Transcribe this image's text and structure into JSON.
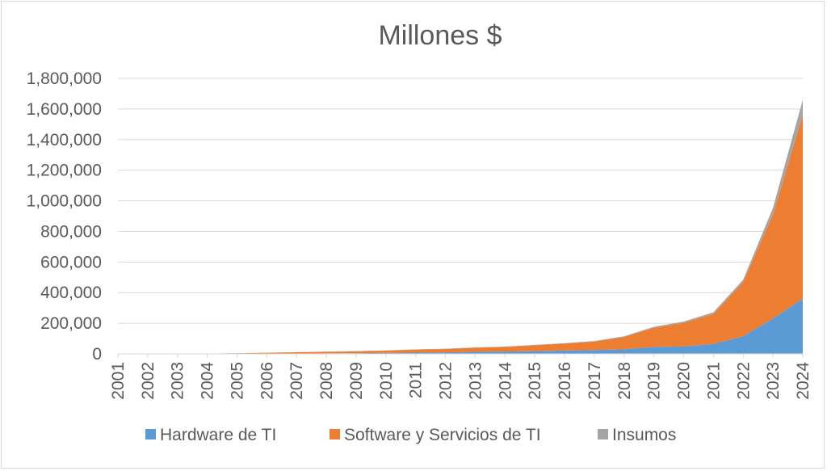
{
  "chart_data": {
    "type": "area",
    "stacked": true,
    "title": "Millones $",
    "xlabel": "",
    "ylabel": "",
    "ylim": [
      0,
      1800000
    ],
    "yticks": [
      "0",
      "200,000",
      "400,000",
      "600,000",
      "800,000",
      "1,000,000",
      "1,200,000",
      "1,400,000",
      "1,600,000",
      "1,800,000"
    ],
    "ytick_values": [
      0,
      200000,
      400000,
      600000,
      800000,
      1000000,
      1200000,
      1400000,
      1600000,
      1800000
    ],
    "categories": [
      "2001",
      "2002",
      "2003",
      "2004",
      "2005",
      "2006",
      "2007",
      "2008",
      "2009",
      "2010",
      "2011",
      "2012",
      "2013",
      "2014",
      "2015",
      "2016",
      "2017",
      "2018",
      "2019",
      "2020",
      "2021",
      "2022",
      "2023",
      "2024"
    ],
    "grid": true,
    "legend_position": "bottom",
    "series": [
      {
        "name": "Hardware de TI",
        "color": "#5B9BD5",
        "values": [
          50,
          80,
          150,
          300,
          800,
          1500,
          2500,
          3500,
          4500,
          6000,
          8000,
          10000,
          13000,
          15000,
          18000,
          22000,
          25000,
          30000,
          45000,
          48000,
          65000,
          115000,
          230000,
          360000
        ]
      },
      {
        "name": "Software y Servicios de TI",
        "color": "#ED7D31",
        "values": [
          300,
          500,
          900,
          1800,
          3500,
          5500,
          8000,
          10000,
          12000,
          15000,
          20000,
          22000,
          27000,
          30000,
          38000,
          45000,
          55000,
          80000,
          125000,
          155000,
          195000,
          355000,
          680000,
          1200000
        ]
      },
      {
        "name": "Insumos",
        "color": "#A5A5A5",
        "values": [
          20,
          40,
          80,
          150,
          300,
          500,
          700,
          900,
          1100,
          1300,
          1500,
          1800,
          2100,
          2400,
          2800,
          3200,
          4000,
          5000,
          7000,
          8000,
          12000,
          15000,
          45000,
          100000
        ]
      }
    ]
  }
}
